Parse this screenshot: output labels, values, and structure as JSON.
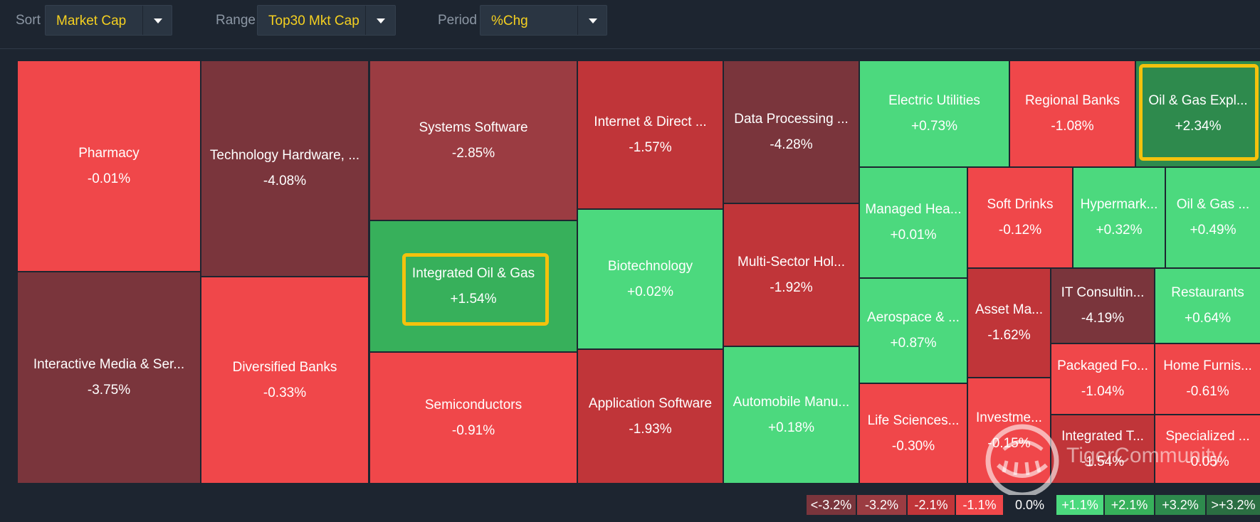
{
  "toolbar": {
    "sort": {
      "label": "Sort",
      "value": "Market Cap"
    },
    "range": {
      "label": "Range",
      "value": "Top30 Mkt Cap"
    },
    "period": {
      "label": "Period",
      "value": "%Chg"
    }
  },
  "colors": {
    "background": "#1d2530",
    "accent_text": "#f5d020",
    "highlight_border": "#f4c20d",
    "scale_neg_extreme": "#7a353c",
    "scale_neg_3": "#9b3c42",
    "scale_neg_2": "#c03539",
    "scale_neg_1": "#f0474a",
    "scale_zero": "#1d2530",
    "scale_pos_1": "#4cd97e",
    "scale_pos_2": "#37b05b",
    "scale_pos_3": "#2e8a4d",
    "scale_pos_extreme": "#2b6e42"
  },
  "tiles": [
    {
      "name": "Pharmacy",
      "chg": "-0.01%",
      "color": "#f0474a"
    },
    {
      "name": "Interactive Media & Ser...",
      "chg": "-3.75%",
      "color": "#7a353c"
    },
    {
      "name": "Technology Hardware, ...",
      "chg": "-4.08%",
      "color": "#7a353c"
    },
    {
      "name": "Diversified Banks",
      "chg": "-0.33%",
      "color": "#f0474a"
    },
    {
      "name": "Systems Software",
      "chg": "-2.85%",
      "color": "#9b3c42"
    },
    {
      "name": "Integrated Oil & Gas",
      "chg": "+1.54%",
      "color": "#37b05b"
    },
    {
      "name": "Semiconductors",
      "chg": "-0.91%",
      "color": "#f0474a"
    },
    {
      "name": "Internet & Direct ...",
      "chg": "-1.57%",
      "color": "#c03539"
    },
    {
      "name": "Biotechnology",
      "chg": "+0.02%",
      "color": "#4cd97e"
    },
    {
      "name": "Application Software",
      "chg": "-1.93%",
      "color": "#c03539"
    },
    {
      "name": "Data Processing ...",
      "chg": "-4.28%",
      "color": "#7a353c"
    },
    {
      "name": "Multi-Sector Hol...",
      "chg": "-1.92%",
      "color": "#c03539"
    },
    {
      "name": "Automobile Manu...",
      "chg": "+0.18%",
      "color": "#4cd97e"
    },
    {
      "name": "Electric Utilities",
      "chg": "+0.73%",
      "color": "#4cd97e"
    },
    {
      "name": "Regional Banks",
      "chg": "-1.08%",
      "color": "#f0474a"
    },
    {
      "name": "Oil & Gas Expl...",
      "chg": "+2.34%",
      "color": "#2e8a4d"
    },
    {
      "name": "Managed Hea...",
      "chg": "+0.01%",
      "color": "#4cd97e"
    },
    {
      "name": "Soft Drinks",
      "chg": "-0.12%",
      "color": "#f0474a"
    },
    {
      "name": "Hypermark...",
      "chg": "+0.32%",
      "color": "#4cd97e"
    },
    {
      "name": "Oil & Gas ...",
      "chg": "+0.49%",
      "color": "#4cd97e"
    },
    {
      "name": "Aerospace & ...",
      "chg": "+0.87%",
      "color": "#4cd97e"
    },
    {
      "name": "Asset Ma...",
      "chg": "-1.62%",
      "color": "#c03539"
    },
    {
      "name": "IT Consultin...",
      "chg": "-4.19%",
      "color": "#7a353c"
    },
    {
      "name": "Restaurants",
      "chg": "+0.64%",
      "color": "#4cd97e"
    },
    {
      "name": "Packaged Fo...",
      "chg": "-1.04%",
      "color": "#f0474a"
    },
    {
      "name": "Home Furnis...",
      "chg": "-0.61%",
      "color": "#f0474a"
    },
    {
      "name": "Life Sciences...",
      "chg": "-0.30%",
      "color": "#f0474a"
    },
    {
      "name": "Investme...",
      "chg": "-0.15%",
      "color": "#f0474a"
    },
    {
      "name": "Integrated T...",
      "chg": "-1.54%",
      "color": "#c03539"
    },
    {
      "name": "Specialized ...",
      "chg": "-0.05%",
      "color": "#f0474a"
    }
  ],
  "legend": [
    {
      "label": "<-3.2%",
      "color": "#7a353c"
    },
    {
      "label": "-3.2%",
      "color": "#9b3c42"
    },
    {
      "label": "-2.1%",
      "color": "#c03539"
    },
    {
      "label": "-1.1%",
      "color": "#f0474a"
    },
    {
      "label": "0.0%",
      "color": "#1d2530"
    },
    {
      "label": "+1.1%",
      "color": "#4cd97e"
    },
    {
      "label": "+2.1%",
      "color": "#37b05b"
    },
    {
      "label": "+3.2%",
      "color": "#2e8a4d"
    },
    {
      "label": ">+3.2%",
      "color": "#2b6e42"
    }
  ],
  "watermark": {
    "text": "TigerCommunity",
    "icon": "tiger-logo-icon"
  }
}
